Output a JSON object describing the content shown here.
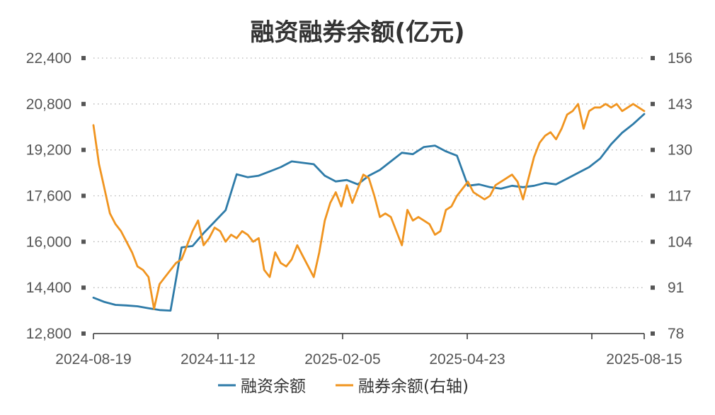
{
  "chart_data": {
    "type": "line",
    "title": "融资融券余额(亿元)",
    "x_tick_labels": [
      "2024-08-19",
      "2024-11-12",
      "2025-02-05",
      "2025-04-23",
      "2025-08-15"
    ],
    "left_axis": {
      "ylim": [
        12800,
        22400
      ],
      "ticks": [
        "12,800",
        "14,400",
        "16,000",
        "17,600",
        "19,200",
        "20,800",
        "22,400"
      ]
    },
    "right_axis": {
      "ylim": [
        78,
        156
      ],
      "ticks": [
        "78",
        "91",
        "104",
        "117",
        "130",
        "143",
        "156"
      ]
    },
    "grid": "dotted-horizontal",
    "legend_position": "bottom",
    "series": [
      {
        "name": "融资余额",
        "axis": "left",
        "color": "#2e7ba8",
        "x": [
          0,
          0.02,
          0.04,
          0.06,
          0.08,
          0.1,
          0.12,
          0.14,
          0.16,
          0.18,
          0.2,
          0.22,
          0.24,
          0.26,
          0.28,
          0.3,
          0.32,
          0.34,
          0.36,
          0.38,
          0.4,
          0.42,
          0.44,
          0.46,
          0.48,
          0.5,
          0.52,
          0.54,
          0.56,
          0.58,
          0.6,
          0.62,
          0.64,
          0.66,
          0.68,
          0.7,
          0.72,
          0.74,
          0.76,
          0.78,
          0.8,
          0.82,
          0.84,
          0.86,
          0.88,
          0.9,
          0.92,
          0.94,
          0.96,
          0.98,
          1.0
        ],
        "values": [
          14050,
          13900,
          13800,
          13780,
          13750,
          13680,
          13620,
          13600,
          15800,
          15850,
          16300,
          16700,
          17100,
          18350,
          18250,
          18300,
          18450,
          18600,
          18800,
          18750,
          18700,
          18300,
          18100,
          18150,
          18000,
          18300,
          18500,
          18800,
          19100,
          19050,
          19300,
          19350,
          19150,
          19000,
          17950,
          18000,
          17900,
          17850,
          17950,
          17900,
          17950,
          18050,
          18000,
          18200,
          18400,
          18600,
          18900,
          19400,
          19800,
          20100,
          20450
        ]
      },
      {
        "name": "融券余额(右轴)",
        "axis": "right",
        "color": "#f0941f",
        "x": [
          0,
          0.01,
          0.02,
          0.03,
          0.04,
          0.05,
          0.06,
          0.07,
          0.08,
          0.09,
          0.1,
          0.11,
          0.12,
          0.13,
          0.14,
          0.15,
          0.16,
          0.17,
          0.18,
          0.19,
          0.2,
          0.21,
          0.22,
          0.23,
          0.24,
          0.25,
          0.26,
          0.27,
          0.28,
          0.29,
          0.3,
          0.31,
          0.32,
          0.33,
          0.34,
          0.35,
          0.36,
          0.37,
          0.38,
          0.39,
          0.4,
          0.41,
          0.42,
          0.43,
          0.44,
          0.45,
          0.46,
          0.47,
          0.48,
          0.49,
          0.5,
          0.51,
          0.52,
          0.53,
          0.54,
          0.55,
          0.56,
          0.57,
          0.58,
          0.59,
          0.6,
          0.61,
          0.62,
          0.63,
          0.64,
          0.65,
          0.66,
          0.67,
          0.68,
          0.69,
          0.7,
          0.71,
          0.72,
          0.73,
          0.74,
          0.75,
          0.76,
          0.77,
          0.78,
          0.79,
          0.8,
          0.81,
          0.82,
          0.83,
          0.84,
          0.85,
          0.86,
          0.87,
          0.88,
          0.89,
          0.9,
          0.91,
          0.92,
          0.93,
          0.94,
          0.95,
          0.96,
          0.97,
          0.98,
          0.99,
          1.0
        ],
        "values": [
          137,
          126,
          119,
          112,
          109,
          107,
          104,
          101,
          97,
          96,
          94,
          85,
          92,
          94,
          96,
          98,
          99,
          103,
          107,
          110,
          103,
          105,
          108,
          107,
          104,
          106,
          105,
          107,
          106,
          104,
          105,
          96,
          94,
          101,
          98,
          97,
          99,
          103,
          100,
          97,
          94,
          101,
          110,
          115,
          118,
          114,
          120,
          115,
          119,
          123,
          122,
          117,
          111,
          112,
          111,
          107,
          103,
          113,
          110,
          111,
          110,
          109,
          106,
          107,
          113,
          114,
          117,
          119,
          121,
          118,
          117,
          116,
          117,
          120,
          121,
          122,
          123,
          121,
          116,
          122,
          128,
          132,
          134,
          135,
          133,
          136,
          140,
          141,
          143,
          136,
          141,
          142,
          142,
          143,
          142,
          143,
          141,
          142,
          143,
          142,
          141
        ]
      }
    ]
  }
}
